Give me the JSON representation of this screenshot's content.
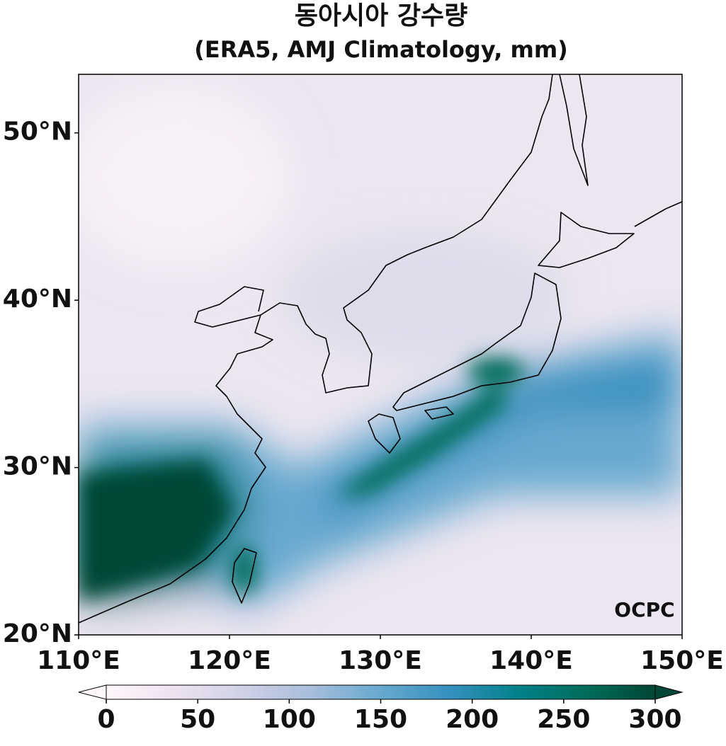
{
  "title": "동아시아 강수량",
  "subtitle": "(ERA5, AMJ Climatology, mm)",
  "map": {
    "xlim": [
      110,
      150
    ],
    "ylim": [
      20,
      53.5
    ],
    "xticks": [
      {
        "value": 110,
        "label": "110°E"
      },
      {
        "value": 120,
        "label": "120°E"
      },
      {
        "value": 130,
        "label": "130°E"
      },
      {
        "value": 140,
        "label": "140°E"
      },
      {
        "value": 150,
        "label": "150°E"
      }
    ],
    "yticks": [
      {
        "value": 20,
        "label": "20°N"
      },
      {
        "value": 30,
        "label": "30°N"
      },
      {
        "value": 40,
        "label": "40°N"
      },
      {
        "value": 50,
        "label": "50°N"
      }
    ]
  },
  "colorbar": {
    "lim": [
      0,
      300
    ],
    "ticks": [
      0,
      50,
      100,
      150,
      200,
      250,
      300
    ],
    "colors": [
      "#fff7fb",
      "#ece2f0",
      "#d0d1e6",
      "#a6bddb",
      "#67a9cf",
      "#3690c0",
      "#02818a",
      "#016c59",
      "#014636"
    ]
  },
  "watermark": "OCPC"
}
